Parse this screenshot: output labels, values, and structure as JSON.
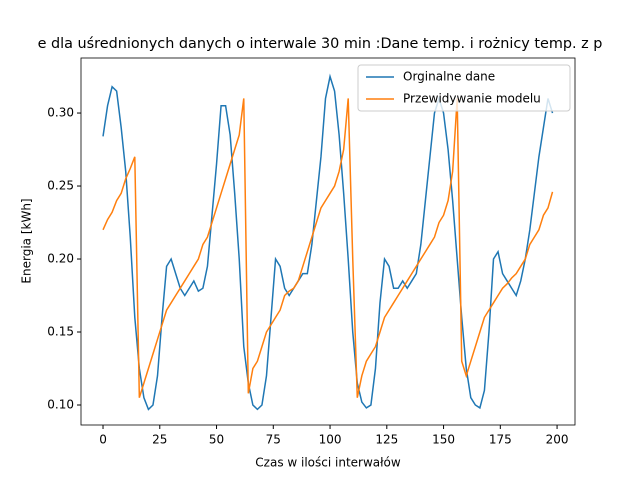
{
  "chart_data": {
    "type": "line",
    "title": "e dla uśrednionych danych o interwale 30 min :Dane temp. i rożnicy temp. z p",
    "xlabel": "Czas w ilości interwałów",
    "ylabel": "Energia [kWh]",
    "x": [
      0,
      2,
      4,
      6,
      8,
      10,
      12,
      14,
      16,
      18,
      20,
      22,
      24,
      26,
      28,
      30,
      32,
      34,
      36,
      38,
      40,
      42,
      44,
      46,
      48,
      50,
      52,
      54,
      56,
      58,
      60,
      62,
      64,
      66,
      68,
      70,
      72,
      74,
      76,
      78,
      80,
      82,
      84,
      86,
      88,
      90,
      92,
      94,
      96,
      98,
      100,
      102,
      104,
      106,
      108,
      110,
      112,
      114,
      116,
      118,
      120,
      122,
      124,
      126,
      128,
      130,
      132,
      134,
      136,
      138,
      140,
      142,
      144,
      146,
      148,
      150,
      152,
      154,
      156,
      158,
      160,
      162,
      164,
      166,
      168,
      170,
      172,
      174,
      176,
      178,
      180,
      182,
      184,
      186,
      188,
      190,
      192,
      194,
      196,
      198
    ],
    "series": [
      {
        "name": "Orginalne dane",
        "color": "#1f77b4",
        "values": [
          0.284,
          0.305,
          0.318,
          0.315,
          0.29,
          0.26,
          0.215,
          0.16,
          0.125,
          0.105,
          0.097,
          0.1,
          0.12,
          0.16,
          0.195,
          0.2,
          0.19,
          0.18,
          0.175,
          0.18,
          0.185,
          0.178,
          0.18,
          0.195,
          0.23,
          0.265,
          0.305,
          0.305,
          0.285,
          0.245,
          0.2,
          0.14,
          0.115,
          0.1,
          0.097,
          0.1,
          0.12,
          0.16,
          0.2,
          0.195,
          0.18,
          0.175,
          0.18,
          0.185,
          0.19,
          0.19,
          0.21,
          0.24,
          0.27,
          0.31,
          0.325,
          0.315,
          0.285,
          0.245,
          0.2,
          0.15,
          0.115,
          0.102,
          0.098,
          0.1,
          0.125,
          0.17,
          0.2,
          0.195,
          0.18,
          0.18,
          0.185,
          0.18,
          0.185,
          0.19,
          0.21,
          0.24,
          0.27,
          0.3,
          0.31,
          0.3,
          0.275,
          0.24,
          0.2,
          0.16,
          0.125,
          0.105,
          0.1,
          0.098,
          0.11,
          0.15,
          0.2,
          0.205,
          0.19,
          0.185,
          0.18,
          0.175,
          0.185,
          0.2,
          0.22,
          0.245,
          0.27,
          0.29,
          0.31,
          0.3
        ]
      },
      {
        "name": "Przewidywanie modelu",
        "color": "#ff7f0e",
        "values": [
          0.22,
          0.227,
          0.232,
          0.24,
          0.245,
          0.255,
          0.262,
          0.27,
          0.105,
          0.115,
          0.125,
          0.135,
          0.145,
          0.155,
          0.165,
          0.17,
          0.175,
          0.18,
          0.185,
          0.19,
          0.195,
          0.2,
          0.21,
          0.215,
          0.225,
          0.235,
          0.245,
          0.255,
          0.265,
          0.275,
          0.285,
          0.31,
          0.108,
          0.125,
          0.13,
          0.14,
          0.15,
          0.155,
          0.16,
          0.165,
          0.175,
          0.178,
          0.18,
          0.185,
          0.195,
          0.205,
          0.215,
          0.225,
          0.235,
          0.24,
          0.245,
          0.25,
          0.26,
          0.275,
          0.31,
          0.2,
          0.105,
          0.12,
          0.13,
          0.135,
          0.14,
          0.15,
          0.16,
          0.165,
          0.17,
          0.175,
          0.18,
          0.185,
          0.19,
          0.195,
          0.2,
          0.205,
          0.21,
          0.215,
          0.225,
          0.23,
          0.24,
          0.26,
          0.31,
          0.13,
          0.12,
          0.13,
          0.14,
          0.15,
          0.16,
          0.165,
          0.17,
          0.175,
          0.18,
          0.183,
          0.187,
          0.19,
          0.195,
          0.2,
          0.21,
          0.215,
          0.22,
          0.23,
          0.235,
          0.246
        ]
      }
    ],
    "xlim": [
      -9.7,
      207.9
    ],
    "xticks": [
      0,
      25,
      50,
      75,
      100,
      125,
      150,
      175,
      200
    ],
    "ylim": [
      0.0863,
      0.3377
    ],
    "yticks": [
      {
        "value": 0.1,
        "label": "0.10"
      },
      {
        "value": 0.15,
        "label": "0.15"
      },
      {
        "value": 0.2,
        "label": "0.20"
      },
      {
        "value": 0.25,
        "label": "0.25"
      },
      {
        "value": 0.3,
        "label": "0.30"
      }
    ],
    "legend": "upper right"
  }
}
